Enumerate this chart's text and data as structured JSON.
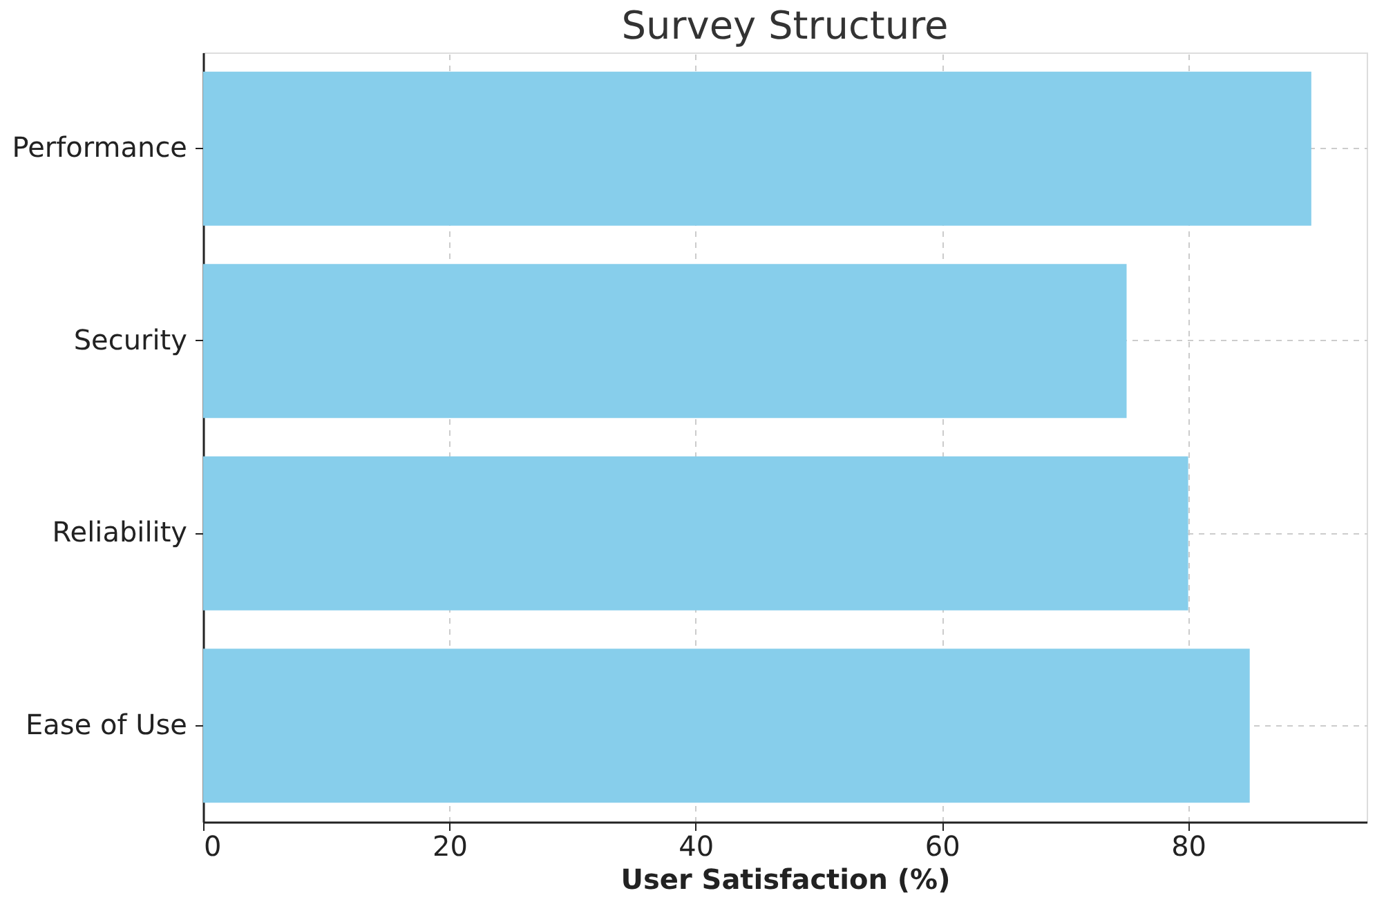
{
  "chart_data": {
    "type": "bar",
    "orientation": "horizontal",
    "title": "Survey Structure",
    "xlabel": "User Satisfaction (%)",
    "categories": [
      "Performance",
      "Security",
      "Reliability",
      "Ease of Use"
    ],
    "values": [
      90,
      75,
      80,
      85
    ],
    "color": "#87ceeb",
    "xlim": [
      0,
      94.5
    ],
    "xticks": [
      0,
      20,
      40,
      60,
      80
    ],
    "grid": true
  }
}
